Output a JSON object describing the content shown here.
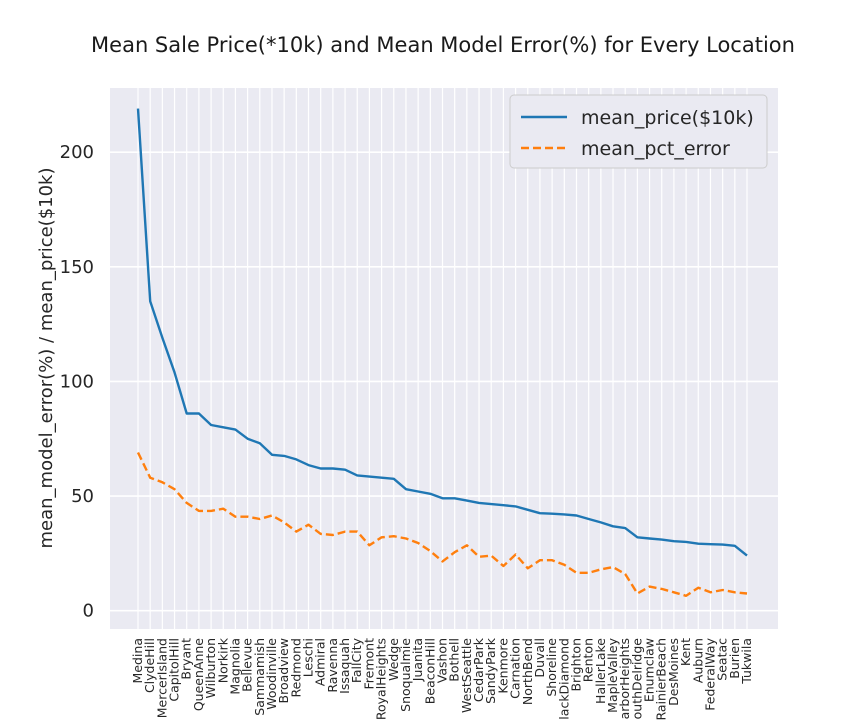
{
  "chart_data": {
    "type": "line",
    "title": "Mean Sale Price(*10k) and Mean Model Error(%) for Every Location",
    "xlabel": "",
    "ylabel": "mean_model_error(%) / mean_price($10k)",
    "ylim": [
      -8,
      228
    ],
    "yticks": [
      0,
      50,
      100,
      150,
      200
    ],
    "grid": true,
    "legend_position": "top-right",
    "categories": [
      "Medina",
      "ClydeHill",
      "MercerIsland",
      "CapitolHill",
      "Bryant",
      "QueenAnne",
      "Wilburton",
      "Norkirk",
      "Magnolia",
      "Bellevue",
      "Sammamish",
      "Woodinville",
      "Broadview",
      "Redmond",
      "Leschi",
      "Admiral",
      "Ravenna",
      "Issaquah",
      "FallCity",
      "Fremont",
      "RoyalHeights",
      "Wedge",
      "Snoqualmie",
      "Juanita",
      "BeaconHill",
      "Vashon",
      "Bothell",
      "WestSeattle",
      "CedarPark",
      "SandyPark",
      "Kenmore",
      "Carnation",
      "NorthBend",
      "Duvall",
      "Shoreline",
      "BlackDiamond",
      "Brighton",
      "Renton",
      "HallerLake",
      "MapleValley",
      "HarborHeights",
      "SouthDelridge",
      "Enumclaw",
      "RainierBeach",
      "DesMoines",
      "Kent",
      "Auburn",
      "FederalWay",
      "Seatac",
      "Burien",
      "Tukwila"
    ],
    "series": [
      {
        "name": "mean_price($10k)",
        "color": "#1f77b4",
        "style": "solid",
        "values": [
          219,
          135,
          119,
          104,
          86,
          86,
          81,
          80,
          79,
          75,
          73,
          68,
          67.5,
          66,
          63.5,
          62,
          62,
          61.5,
          59,
          58.5,
          58,
          57.5,
          53,
          52,
          51,
          49,
          49,
          48,
          47,
          46.5,
          46,
          45.5,
          44,
          42.5,
          42.3,
          42,
          41.5,
          40,
          38.5,
          36.8,
          36,
          32,
          31.5,
          31,
          30.3,
          30,
          29.2,
          29,
          28.8,
          28.3,
          24
        ]
      },
      {
        "name": "mean_pct_error",
        "color": "#ff7f0e",
        "style": "dashed",
        "values": [
          69,
          58,
          56,
          53,
          47,
          43.5,
          43.5,
          44.5,
          41,
          41,
          40,
          41.5,
          38.5,
          34.5,
          37.5,
          33.5,
          33,
          34.5,
          34.5,
          28.5,
          32,
          32.5,
          31.5,
          29.5,
          26,
          21.5,
          25.5,
          28.5,
          23.5,
          24,
          19.5,
          24.5,
          18.5,
          22,
          22,
          20,
          16.5,
          16.5,
          18,
          19,
          16,
          7.5,
          10.5,
          9.5,
          8,
          6.5,
          10,
          8,
          9,
          8,
          7.5
        ]
      }
    ]
  }
}
